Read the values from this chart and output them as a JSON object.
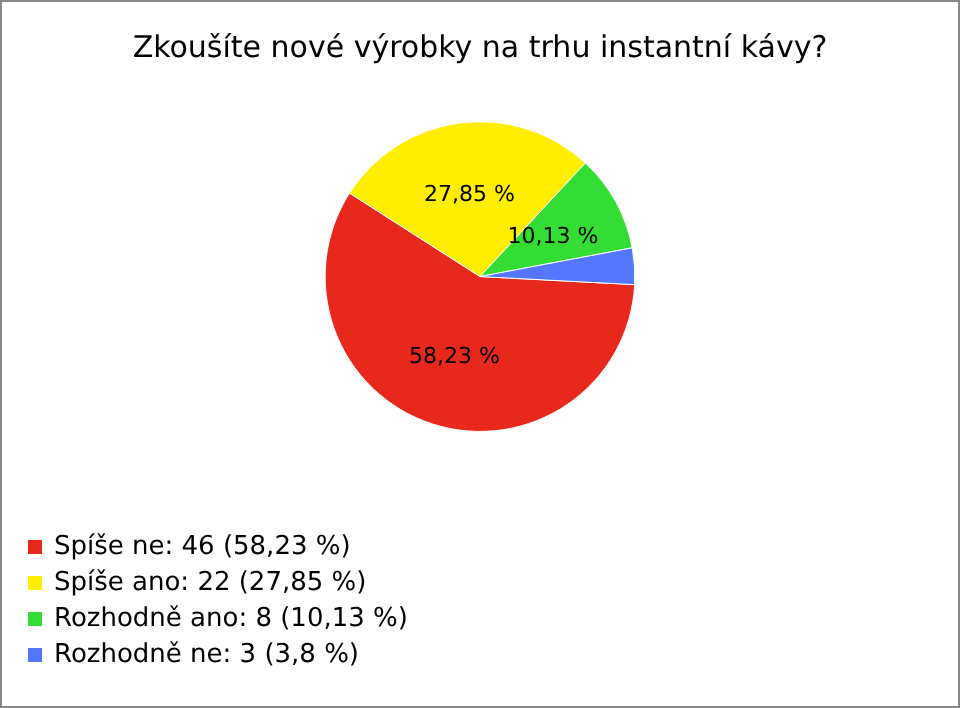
{
  "chart_data": {
    "type": "pie",
    "title": "Zkoušíte nové výrobky na trhu instantní kávy?",
    "categories": [
      "Spíše ne: 46 (58,23 %)",
      "Spíše ano: 22 (27,85 %)",
      "Rozhodně ano: 8 (10,13 %)",
      "Rozhodně ne: 3 (3,8 %)"
    ],
    "values": [
      58.23,
      27.85,
      10.13,
      3.8
    ],
    "value_labels": [
      "58,23 %",
      "27,85 %",
      "10,13 %",
      null
    ],
    "colors": [
      "#e8281c",
      "#ffee00",
      "#33dd33",
      "#5577ff"
    ],
    "legend": "bottom left"
  }
}
